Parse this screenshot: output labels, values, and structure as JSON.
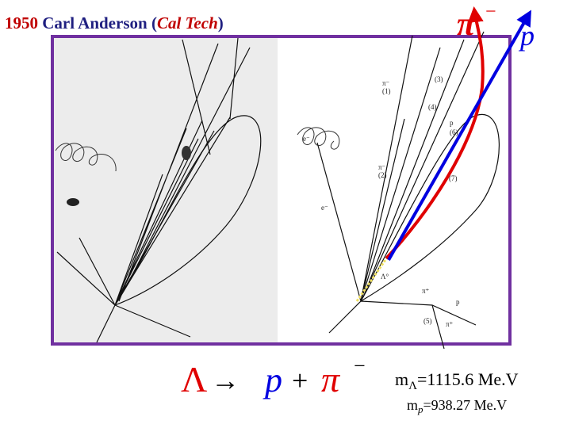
{
  "title": {
    "year": "1950",
    "name": "Carl Anderson",
    "open": "(",
    "institution": "Cal Tech",
    "close": ")"
  },
  "decay_labels": {
    "pion": "π",
    "pion_charge": "−",
    "proton": "p"
  },
  "sketch_labels": [
    "π⁻",
    "(1)",
    "(3)",
    "(4)",
    "p",
    "(6)",
    "π⁻",
    "(2)",
    "(7)",
    "e⁻",
    "e⁻",
    "Λ°",
    "π⁺",
    "p",
    "(5)",
    "π⁺"
  ],
  "equation": {
    "lambda": "Λ",
    "arrow": "→",
    "proton": "p",
    "plus": "+",
    "pion": "π",
    "charge": "−"
  },
  "masses": [
    {
      "symbol": "m",
      "subscript": "Λ",
      "value": "=1115.6 Me.V"
    },
    {
      "symbol": "m",
      "subscript": "p",
      "value": "=938.27 Me.V"
    }
  ]
}
